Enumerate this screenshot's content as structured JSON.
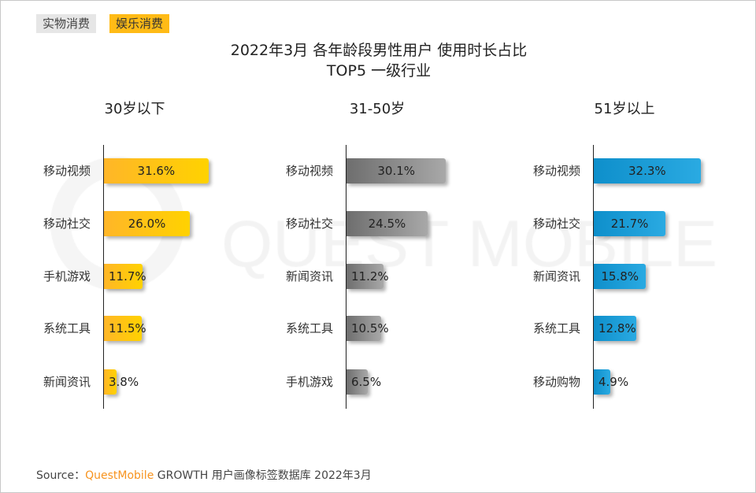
{
  "tabs": [
    "实物消费",
    "娱乐消费"
  ],
  "chart_data": {
    "type": "bar",
    "title": "2022年3月 各年龄段男性用户 使用时长占比",
    "subtitle": "TOP5 一级行业",
    "orientation": "horizontal",
    "panels": [
      {
        "title": "30岁以下",
        "colors": [
          "#ffb628",
          "#ffd200"
        ],
        "categories": [
          "移动视频",
          "移动社交",
          "手机游戏",
          "系统工具",
          "新闻资讯"
        ],
        "values": [
          31.6,
          26.0,
          11.7,
          11.5,
          3.8
        ],
        "labels": [
          "31.6%",
          "26.0%",
          "11.7%",
          "11.5%",
          "3.8%"
        ]
      },
      {
        "title": "31-50岁",
        "colors": [
          "#6e6e6e",
          "#a8a8a8"
        ],
        "categories": [
          "移动视频",
          "移动社交",
          "新闻资讯",
          "系统工具",
          "手机游戏"
        ],
        "values": [
          30.1,
          24.5,
          11.2,
          10.5,
          6.5
        ],
        "labels": [
          "30.1%",
          "24.5%",
          "11.2%",
          "10.5%",
          "6.5%"
        ]
      },
      {
        "title": "51岁以上",
        "colors": [
          "#0e8fcb",
          "#2aaae2"
        ],
        "categories": [
          "移动视频",
          "移动社交",
          "新闻资讯",
          "系统工具",
          "移动购物"
        ],
        "values": [
          32.3,
          21.7,
          15.8,
          12.8,
          4.9
        ],
        "labels": [
          "32.3%",
          "21.7%",
          "15.8%",
          "12.8%",
          "4.9%"
        ]
      }
    ]
  },
  "watermark": "QUEST MOBILE",
  "source": {
    "prefix": "Source：",
    "brand": "QuestMobile",
    "rest": "GROWTH 用户画像标签数据库 2022年3月"
  }
}
